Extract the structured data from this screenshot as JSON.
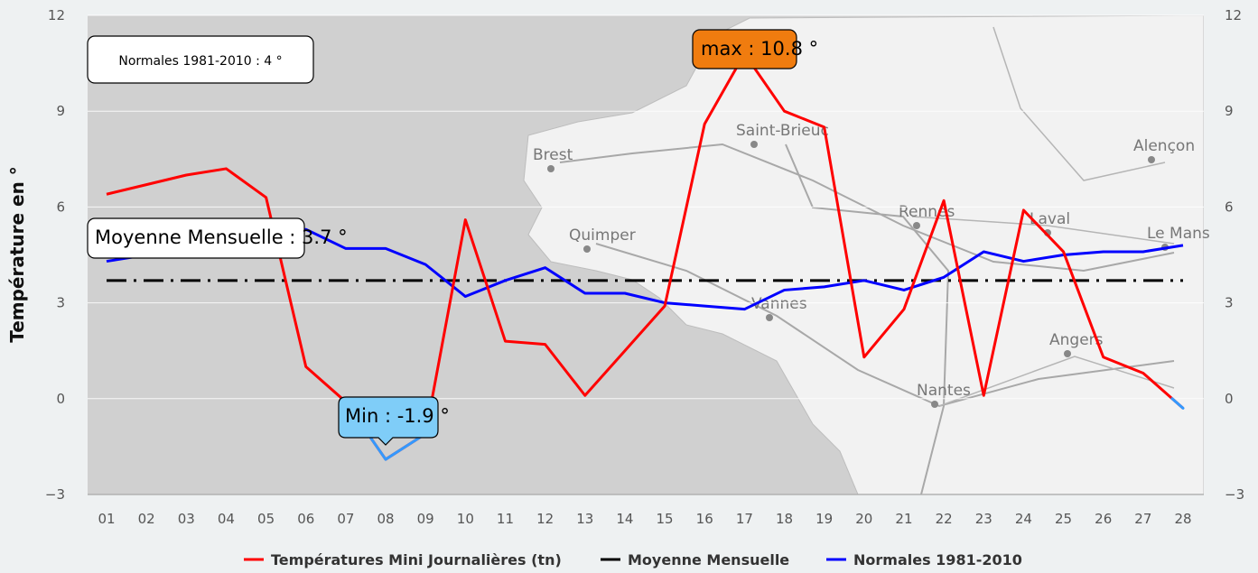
{
  "chart_data": {
    "type": "line",
    "ylabel": "Température en °",
    "ylim": [
      -3,
      12
    ],
    "yticks": [
      -3,
      0,
      3,
      6,
      9,
      12
    ],
    "categories": [
      "01",
      "02",
      "03",
      "04",
      "05",
      "06",
      "07",
      "08",
      "09",
      "10",
      "11",
      "12",
      "13",
      "14",
      "15",
      "16",
      "17",
      "18",
      "19",
      "20",
      "21",
      "22",
      "23",
      "24",
      "25",
      "26",
      "27",
      "28"
    ],
    "series": [
      {
        "name": "Températures Mini Journalières (tn)",
        "color": "#ff0000",
        "values": [
          6.4,
          6.7,
          7.0,
          7.2,
          6.3,
          1.0,
          -0.1,
          -1.9,
          -1.1,
          5.6,
          1.8,
          1.7,
          0.1,
          1.5,
          2.9,
          8.6,
          10.8,
          9.0,
          8.5,
          1.3,
          2.8,
          6.2,
          0.1,
          5.9,
          4.6,
          1.3,
          0.8,
          -0.3
        ]
      },
      {
        "name": "Moyenne Mensuelle",
        "color": "#000000",
        "dash": "dash-dot",
        "value": 3.7
      },
      {
        "name": "Normales 1981-2010",
        "color": "#0000ff",
        "values": [
          4.3,
          4.5,
          4.7,
          4.9,
          5.1,
          5.3,
          4.7,
          4.7,
          4.2,
          3.2,
          3.7,
          4.1,
          3.3,
          3.3,
          3.0,
          2.9,
          2.8,
          3.4,
          3.5,
          3.7,
          3.4,
          3.8,
          4.6,
          4.3,
          4.5,
          4.6,
          4.6,
          4.8
        ]
      }
    ],
    "annotations": {
      "normales": "Normales 1981-2010 : 4 °",
      "moyenne": "Moyenne Mensuelle : 3.7 °",
      "max": "max : 10.8 °",
      "min": "Min : -1.9 °"
    },
    "map_labels": [
      "Brest",
      "Saint-Brieuc",
      "Quimper",
      "Rennes",
      "Laval",
      "Vannes",
      "Nantes",
      "Angers",
      "Alençon",
      "Le Mans"
    ],
    "colors": {
      "max_label_bg": "#f07c0f",
      "min_label_bg": "#7fcdf8",
      "min_highlight": "#3399ff",
      "plot_bg": "#cfcfcf",
      "land": "#f2f2f2"
    },
    "legend_placement": "bottom",
    "grid": true
  }
}
